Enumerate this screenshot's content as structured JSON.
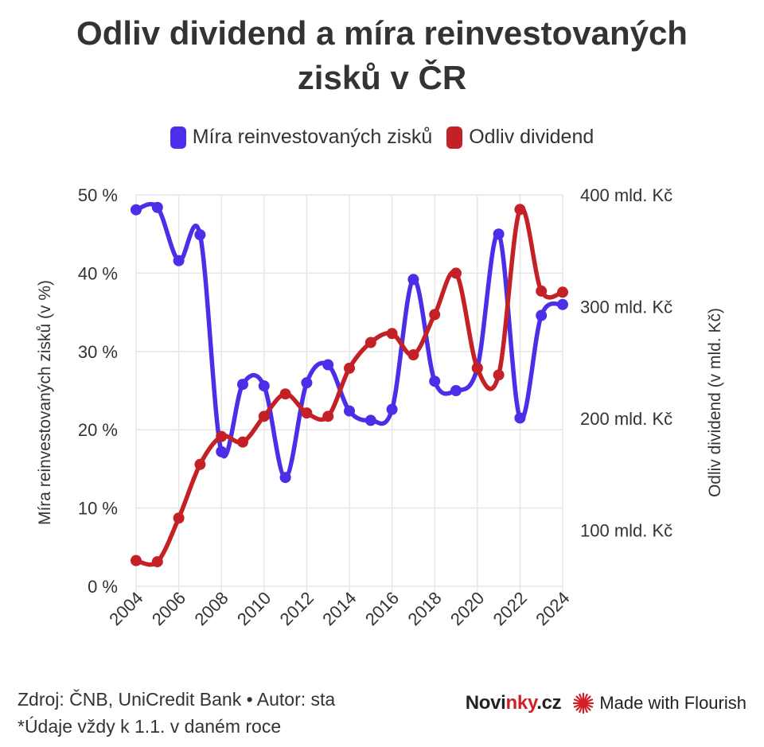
{
  "title_line1": "Odliv dividend a míra reinvestovaných",
  "title_line2": "zisků v ČR",
  "legend": [
    {
      "label": "Míra reinvestovaných zisků",
      "color": "#4b2ee8"
    },
    {
      "label": "Odliv dividend",
      "color": "#c42127"
    }
  ],
  "footer": {
    "source": "Zdroj: ČNB, UniCredit Bank • Autor: sta",
    "note": "*Údaje vždy k 1.1. v daném roce",
    "brand_a": "Novi",
    "brand_b": "nky",
    "brand_c": ".cz",
    "flourish": "Made with Flourish"
  },
  "colors": {
    "reinvest": "#4b2ee8",
    "dividends": "#c42127",
    "grid": "#e6e6e6",
    "text": "#333333"
  },
  "chart_data": {
    "type": "line",
    "x": [
      2004,
      2005,
      2006,
      2007,
      2008,
      2009,
      2010,
      2011,
      2012,
      2013,
      2014,
      2015,
      2016,
      2017,
      2018,
      2019,
      2020,
      2021,
      2022,
      2023,
      2024
    ],
    "x_ticks": [
      "2004",
      "2006",
      "2008",
      "2010",
      "2012",
      "2014",
      "2016",
      "2018",
      "2020",
      "2022",
      "2024"
    ],
    "series": [
      {
        "name": "Míra reinvestovaných zisků",
        "axis": "left",
        "values": [
          48.1,
          48.4,
          41.6,
          44.9,
          17.2,
          25.8,
          25.6,
          13.9,
          26.0,
          28.3,
          22.4,
          21.2,
          22.6,
          39.2,
          26.2,
          25.0,
          27.9,
          45.0,
          21.5,
          34.6,
          36.0
        ]
      },
      {
        "name": "Odliv dividend",
        "axis": "right",
        "values": [
          73,
          72,
          111,
          159,
          184,
          179,
          202,
          222,
          205,
          202,
          245,
          268,
          276,
          257,
          293,
          330,
          245,
          239,
          387,
          314,
          313
        ]
      }
    ],
    "y_left": {
      "label": "Míra reinvestovaných zisků (v %)",
      "min": 0,
      "max": 50,
      "ticks": [
        "0 %",
        "10 %",
        "20 %",
        "30 %",
        "40 %",
        "50 %"
      ],
      "tick_values": [
        0,
        10,
        20,
        30,
        40,
        50
      ]
    },
    "y_right": {
      "label": "Odliv dividend (v mld. Kč)",
      "min": 50,
      "max": 400,
      "ticks": [
        "100 mld. Kč",
        "200 mld. Kč",
        "300 mld. Kč",
        "400 mld. Kč"
      ],
      "tick_values": [
        100,
        200,
        300,
        400
      ]
    },
    "grid": true,
    "legend_position": "top"
  }
}
